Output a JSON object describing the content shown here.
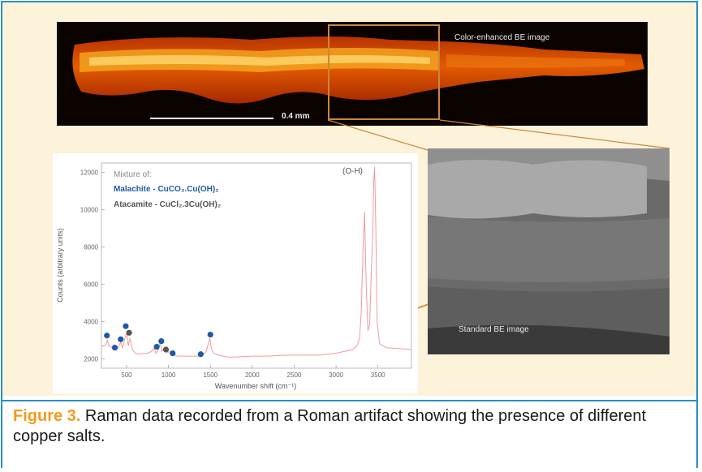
{
  "figure": {
    "color_image_label": "Color-enhanced BE image",
    "standard_image_label": "Standard BE image",
    "scale_bar_label": "0.4 mm",
    "colors": {
      "border": "#2a8fc4",
      "figure_number": "#f39a1e",
      "panel_bg": "#fdf3da",
      "zoom": "#c9873a"
    }
  },
  "caption": {
    "figure_number": "Figure 3.",
    "text": " Raman data recorded from a Roman artifact showing the presence of different copper salts."
  },
  "chart_data": {
    "type": "line",
    "xlabel": "Wavenumber shift (cm⁻¹)",
    "ylabel": "Counts (arbitrary units)",
    "xlim": [
      200,
      3900
    ],
    "ylim": [
      1500,
      12500
    ],
    "xticks": [
      500,
      1000,
      1500,
      2000,
      2500,
      3000,
      3500
    ],
    "yticks": [
      2000,
      4000,
      6000,
      8000,
      10000,
      12000
    ],
    "xtick_labels": [
      "500",
      "1000",
      "1500",
      "2000",
      "2500",
      "3000",
      "3500"
    ],
    "ytick_labels": [
      "2000",
      "4000",
      "6000",
      "8000",
      "10000",
      "12000"
    ],
    "legend_title": "Mixture of:",
    "legend": [
      {
        "text": "Malachite - CuCO₃.Cu(OH)₂",
        "color": "#1f5aa8"
      },
      {
        "text": "Atacamite - CuCl₂.3Cu(OH)₂",
        "color": "#555555"
      }
    ],
    "annotation": "(O-H)",
    "line_color": "#f09a9a",
    "series": [
      {
        "points": [
          [
            200,
            2650
          ],
          [
            250,
            2750
          ],
          [
            270,
            3000
          ],
          [
            290,
            2700
          ],
          [
            330,
            2600
          ],
          [
            350,
            2750
          ],
          [
            370,
            2500
          ],
          [
            400,
            2600
          ],
          [
            430,
            2900
          ],
          [
            450,
            2600
          ],
          [
            500,
            3400
          ],
          [
            520,
            2700
          ],
          [
            540,
            3100
          ],
          [
            570,
            2500
          ],
          [
            600,
            2300
          ],
          [
            650,
            2250
          ],
          [
            700,
            2300
          ],
          [
            750,
            2300
          ],
          [
            800,
            2400
          ],
          [
            830,
            2600
          ],
          [
            850,
            2300
          ],
          [
            880,
            2500
          ],
          [
            900,
            2900
          ],
          [
            920,
            2400
          ],
          [
            950,
            2600
          ],
          [
            980,
            2350
          ],
          [
            1050,
            2400
          ],
          [
            1080,
            2200
          ],
          [
            1100,
            2150
          ],
          [
            1200,
            2150
          ],
          [
            1350,
            2150
          ],
          [
            1420,
            2250
          ],
          [
            1450,
            2400
          ],
          [
            1480,
            2900
          ],
          [
            1495,
            3100
          ],
          [
            1510,
            2600
          ],
          [
            1540,
            2300
          ],
          [
            1600,
            2200
          ],
          [
            1700,
            2100
          ],
          [
            1800,
            2100
          ],
          [
            2000,
            2150
          ],
          [
            2200,
            2150
          ],
          [
            2400,
            2200
          ],
          [
            2600,
            2200
          ],
          [
            2800,
            2200
          ],
          [
            3000,
            2300
          ],
          [
            3100,
            2400
          ],
          [
            3200,
            2500
          ],
          [
            3250,
            2700
          ],
          [
            3280,
            3100
          ],
          [
            3300,
            4500
          ],
          [
            3320,
            7500
          ],
          [
            3340,
            9900
          ],
          [
            3360,
            6000
          ],
          [
            3380,
            3500
          ],
          [
            3400,
            3800
          ],
          [
            3420,
            6500
          ],
          [
            3440,
            9000
          ],
          [
            3450,
            11500
          ],
          [
            3460,
            12300
          ],
          [
            3475,
            9000
          ],
          [
            3490,
            4000
          ],
          [
            3520,
            2800
          ],
          [
            3600,
            2600
          ],
          [
            3750,
            2550
          ],
          [
            3900,
            2500
          ]
        ]
      }
    ],
    "markers": [
      {
        "x": 265,
        "y": 3250,
        "color": "#1f5aa8"
      },
      {
        "x": 360,
        "y": 2600,
        "color": "#1f5aa8"
      },
      {
        "x": 430,
        "y": 3050,
        "color": "#1f5aa8"
      },
      {
        "x": 490,
        "y": 3750,
        "color": "#1f5aa8"
      },
      {
        "x": 530,
        "y": 3400,
        "color": "#555555"
      },
      {
        "x": 860,
        "y": 2650,
        "color": "#1f5aa8"
      },
      {
        "x": 915,
        "y": 2950,
        "color": "#1f5aa8"
      },
      {
        "x": 970,
        "y": 2500,
        "color": "#555555"
      },
      {
        "x": 1050,
        "y": 2300,
        "color": "#1f5aa8"
      },
      {
        "x": 1385,
        "y": 2250,
        "color": "#1f5aa8"
      },
      {
        "x": 1500,
        "y": 3300,
        "color": "#1f5aa8"
      }
    ]
  }
}
